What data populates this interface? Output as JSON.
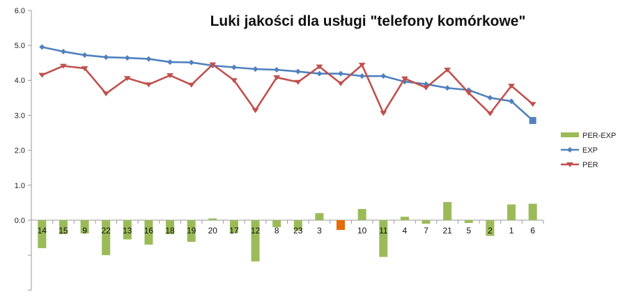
{
  "chart_data": {
    "type": "line",
    "title": "Luki jakości dla usługi \"telefony komórkowe\"",
    "categories": [
      "14",
      "15",
      "9",
      "22",
      "13",
      "16",
      "18",
      "19",
      "20",
      "17",
      "12",
      "8",
      "23",
      "3",
      "?",
      "10",
      "11",
      "4",
      "7",
      "21",
      "5",
      "2",
      "1",
      "6"
    ],
    "category_labels_shown": [
      "14",
      "15",
      "9",
      "22",
      "13",
      "16",
      "18",
      "19",
      "20",
      "17",
      "12",
      "8",
      "23",
      "3",
      "",
      "10",
      "11",
      "4",
      "7",
      "21",
      "5",
      "2",
      "1",
      "6"
    ],
    "ylim": [
      -2.0,
      6.0
    ],
    "yticks": [
      "6.0",
      "5.0",
      "4.0",
      "3.0",
      "2.0",
      "1.0",
      "0.0"
    ],
    "series": [
      {
        "name": "PER-EXP",
        "kind": "bar",
        "color": "#9BBB59",
        "highlight_color": "#E46C0A",
        "highlight_index": 14,
        "values": [
          -0.8,
          -0.4,
          -0.38,
          -1.0,
          -0.55,
          -0.7,
          -0.4,
          -0.62,
          0.05,
          -0.37,
          -1.18,
          -0.2,
          -0.3,
          0.2,
          -0.28,
          0.32,
          -1.05,
          0.1,
          -0.1,
          0.52,
          -0.08,
          -0.45,
          0.45,
          0.47
        ]
      },
      {
        "name": "EXP",
        "kind": "line",
        "color": "#4F81BD",
        "marker": "diamond",
        "values": [
          4.95,
          4.82,
          4.72,
          4.66,
          4.64,
          4.61,
          4.52,
          4.51,
          4.42,
          4.37,
          4.32,
          4.3,
          4.25,
          4.19,
          4.19,
          4.12,
          4.12,
          3.96,
          3.89,
          3.78,
          3.72,
          3.5,
          3.4,
          2.85
        ]
      },
      {
        "name": "PER",
        "kind": "line",
        "color": "#C0504D",
        "marker": "triangle-down",
        "values": [
          4.15,
          4.41,
          4.34,
          3.62,
          4.06,
          3.88,
          4.14,
          3.87,
          4.45,
          4.0,
          3.14,
          4.08,
          3.95,
          4.39,
          3.91,
          4.44,
          3.06,
          4.05,
          3.79,
          4.3,
          3.64,
          3.05,
          3.84,
          3.32
        ]
      }
    ],
    "legend": {
      "position": "right",
      "items": [
        "PER-EXP",
        "EXP",
        "PER"
      ]
    },
    "grid": false
  }
}
